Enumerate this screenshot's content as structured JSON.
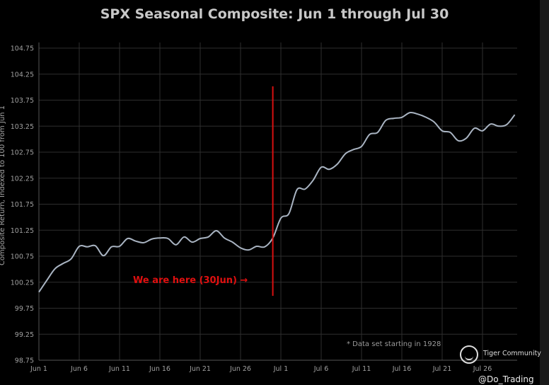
{
  "chart_data": {
    "type": "line",
    "title": "SPX Seasonal Composite: Jun 1 through Jul 30",
    "ylabel": "Composite Return, Indexed to 100 from Jun 1",
    "xlabel": "",
    "ylim": [
      98.75,
      104.75
    ],
    "yticks": [
      "104.75",
      "104.25",
      "103.75",
      "103.25",
      "102.75",
      "102.25",
      "101.75",
      "101.25",
      "100.75",
      "100.25",
      "99.75",
      "99.25",
      "98.75"
    ],
    "xticks": [
      "Jun 1",
      "Jun 6",
      "Jun 11",
      "Jun 16",
      "Jun 21",
      "Jun 26",
      "Jul 1",
      "Jul 6",
      "Jul 11",
      "Jul 16",
      "Jul 21",
      "Jul 26"
    ],
    "grid": true,
    "x_start": "Jun 1",
    "x_end": "Jul 30",
    "values": [
      100.06,
      100.29,
      100.51,
      100.61,
      100.7,
      100.94,
      100.93,
      100.95,
      100.76,
      100.93,
      100.94,
      101.09,
      101.04,
      101.01,
      101.08,
      101.1,
      101.09,
      100.97,
      101.12,
      101.02,
      101.09,
      101.12,
      101.24,
      101.1,
      101.02,
      100.91,
      100.87,
      100.94,
      100.93,
      101.1,
      101.48,
      101.57,
      102.03,
      102.04,
      102.21,
      102.46,
      102.42,
      102.52,
      102.72,
      102.8,
      102.86,
      103.09,
      103.13,
      103.36,
      103.4,
      103.42,
      103.51,
      103.48,
      103.42,
      103.33,
      103.16,
      103.13,
      102.97,
      103.02,
      103.21,
      103.16,
      103.29,
      103.25,
      103.28,
      103.47
    ],
    "marker": {
      "date": "Jun 30",
      "label": "We are here (30Jun) →"
    },
    "annotation": "* Data set starting in 1928",
    "colors": {
      "line": "#a9b4c2",
      "marker": "#d81010",
      "grid": "#2e2e2e",
      "background": "#000000"
    }
  },
  "watermark": {
    "brand": "Tiger Community",
    "handle": "@Do_Trading"
  }
}
